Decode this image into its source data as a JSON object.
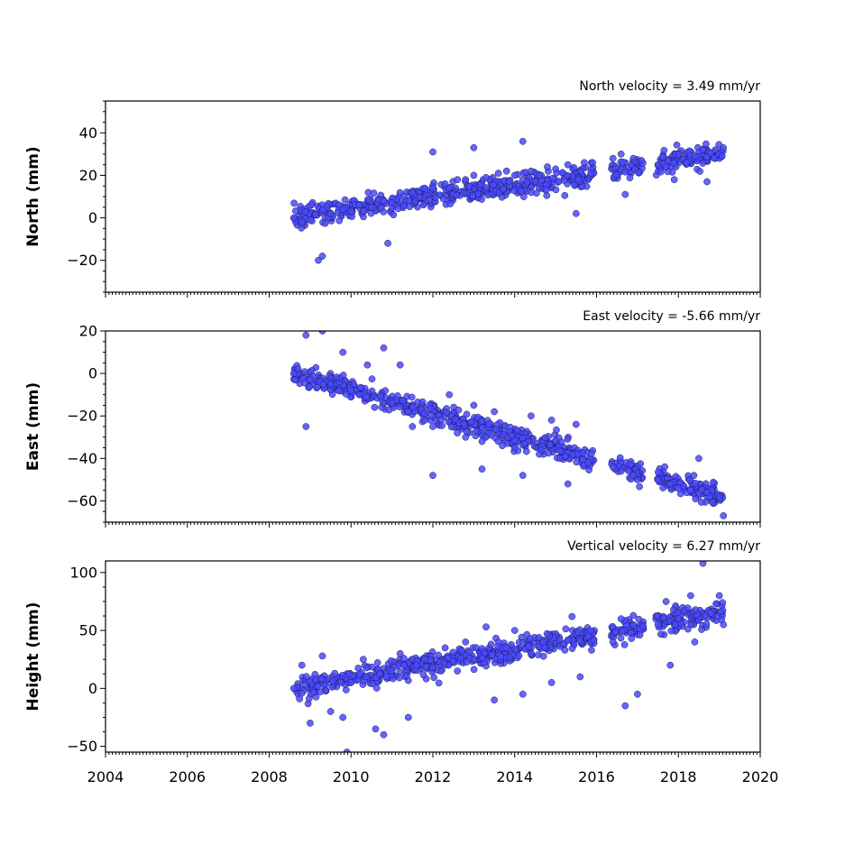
{
  "chart_data": [
    {
      "type": "scatter",
      "ylabel": "North (mm)",
      "annotation": "North velocity = 3.49 mm/yr",
      "velocity_mm_per_yr": 3.49,
      "xlim": [
        2004,
        2020
      ],
      "ylim": [
        -35,
        55
      ],
      "yticks": [
        -20,
        0,
        20,
        40
      ],
      "ytick_labels": [
        "−20",
        "0",
        "20",
        "40"
      ],
      "color": "#4a4aff",
      "trend": {
        "x_start": 2008.6,
        "x_end": 2019.1,
        "y_start": 0,
        "y_end": 30
      },
      "points": [
        [
          2008.6,
          0
        ],
        [
          2008.8,
          -2
        ],
        [
          2009.0,
          -1
        ],
        [
          2009.2,
          -20
        ],
        [
          2009.3,
          -18
        ],
        [
          2009.5,
          2
        ],
        [
          2009.8,
          4
        ],
        [
          2010.0,
          3
        ],
        [
          2010.2,
          6
        ],
        [
          2010.5,
          5
        ],
        [
          2010.8,
          8
        ],
        [
          2010.9,
          -12
        ],
        [
          2011.0,
          7
        ],
        [
          2011.3,
          10
        ],
        [
          2011.5,
          12
        ],
        [
          2011.8,
          14
        ],
        [
          2012.0,
          14
        ],
        [
          2012.0,
          31
        ],
        [
          2012.3,
          16
        ],
        [
          2012.6,
          18
        ],
        [
          2012.8,
          18
        ],
        [
          2013.0,
          20
        ],
        [
          2013.0,
          33
        ],
        [
          2013.3,
          19
        ],
        [
          2013.6,
          21
        ],
        [
          2013.8,
          22
        ],
        [
          2014.0,
          20
        ],
        [
          2014.2,
          36
        ],
        [
          2014.4,
          22
        ],
        [
          2014.6,
          20
        ],
        [
          2014.8,
          24
        ],
        [
          2015.0,
          23
        ],
        [
          2015.3,
          25
        ],
        [
          2015.5,
          2
        ],
        [
          2015.7,
          26
        ],
        [
          2015.9,
          26
        ],
        [
          2016.4,
          28
        ],
        [
          2016.6,
          30
        ],
        [
          2016.7,
          11
        ],
        [
          2016.9,
          28
        ],
        [
          2017.1,
          27
        ],
        [
          2017.5,
          25
        ],
        [
          2017.7,
          24
        ],
        [
          2017.9,
          18
        ],
        [
          2018.0,
          30
        ],
        [
          2018.2,
          26
        ],
        [
          2018.4,
          29
        ],
        [
          2018.6,
          32
        ],
        [
          2018.7,
          17
        ],
        [
          2018.9,
          32
        ],
        [
          2019.1,
          33
        ]
      ]
    },
    {
      "type": "scatter",
      "ylabel": "East (mm)",
      "annotation": "East velocity = -5.66 mm/yr",
      "velocity_mm_per_yr": -5.66,
      "xlim": [
        2004,
        2020
      ],
      "ylim": [
        -70,
        20
      ],
      "yticks": [
        -60,
        -40,
        -20,
        0,
        20
      ],
      "ytick_labels": [
        "−60",
        "−40",
        "−20",
        "0",
        "20"
      ],
      "color": "#4a4aff",
      "trend": {
        "x_start": 2008.6,
        "x_end": 2019.1,
        "y_start": 0,
        "y_end": -58
      },
      "points": [
        [
          2008.6,
          0
        ],
        [
          2008.9,
          18
        ],
        [
          2008.9,
          -25
        ],
        [
          2009.0,
          -3
        ],
        [
          2009.3,
          20
        ],
        [
          2009.5,
          -5
        ],
        [
          2009.8,
          10
        ],
        [
          2010.0,
          -8
        ],
        [
          2010.2,
          -10
        ],
        [
          2010.4,
          4
        ],
        [
          2010.8,
          12
        ],
        [
          2011.0,
          -14
        ],
        [
          2011.2,
          4
        ],
        [
          2011.4,
          -18
        ],
        [
          2011.5,
          -25
        ],
        [
          2011.8,
          -22
        ],
        [
          2012.0,
          -25
        ],
        [
          2012.0,
          -48
        ],
        [
          2012.4,
          -10
        ],
        [
          2012.6,
          -28
        ],
        [
          2012.8,
          -30
        ],
        [
          2013.0,
          -15
        ],
        [
          2013.2,
          -32
        ],
        [
          2013.2,
          -45
        ],
        [
          2013.5,
          -18
        ],
        [
          2013.7,
          -34
        ],
        [
          2014.0,
          -35
        ],
        [
          2014.2,
          -48
        ],
        [
          2014.4,
          -20
        ],
        [
          2014.6,
          -38
        ],
        [
          2014.9,
          -22
        ],
        [
          2015.1,
          -40
        ],
        [
          2015.3,
          -52
        ],
        [
          2015.5,
          -24
        ],
        [
          2015.8,
          -42
        ],
        [
          2016.4,
          -44
        ],
        [
          2016.6,
          -46
        ],
        [
          2016.9,
          -48
        ],
        [
          2017.0,
          -50
        ],
        [
          2017.5,
          -50
        ],
        [
          2017.8,
          -52
        ],
        [
          2018.0,
          -54
        ],
        [
          2018.3,
          -55
        ],
        [
          2018.5,
          -40
        ],
        [
          2018.7,
          -56
        ],
        [
          2019.0,
          -58
        ],
        [
          2019.1,
          -67
        ]
      ]
    },
    {
      "type": "scatter",
      "ylabel": "Height (mm)",
      "annotation": "Vertical velocity = 6.27 mm/yr",
      "velocity_mm_per_yr": 6.27,
      "xlim": [
        2004,
        2020
      ],
      "ylim": [
        -55,
        110
      ],
      "yticks": [
        -50,
        0,
        50,
        100
      ],
      "ytick_labels": [
        "−50",
        "0",
        "50",
        "100"
      ],
      "color": "#4a4aff",
      "trend": {
        "x_start": 2008.6,
        "x_end": 2019.1,
        "y_start": 0,
        "y_end": 65
      },
      "points": [
        [
          2008.6,
          0
        ],
        [
          2008.8,
          20
        ],
        [
          2009.0,
          -30
        ],
        [
          2009.3,
          28
        ],
        [
          2009.5,
          -20
        ],
        [
          2009.8,
          -25
        ],
        [
          2009.9,
          -55
        ],
        [
          2010.0,
          5
        ],
        [
          2010.3,
          25
        ],
        [
          2010.6,
          -35
        ],
        [
          2010.8,
          -40
        ],
        [
          2011.0,
          15
        ],
        [
          2011.2,
          30
        ],
        [
          2011.4,
          -25
        ],
        [
          2011.6,
          20
        ],
        [
          2011.8,
          25
        ],
        [
          2012.0,
          18
        ],
        [
          2012.3,
          35
        ],
        [
          2012.6,
          15
        ],
        [
          2012.8,
          40
        ],
        [
          2013.0,
          25
        ],
        [
          2013.3,
          53
        ],
        [
          2013.5,
          -10
        ],
        [
          2013.8,
          35
        ],
        [
          2014.0,
          50
        ],
        [
          2014.2,
          -5
        ],
        [
          2014.4,
          30
        ],
        [
          2014.7,
          40
        ],
        [
          2014.9,
          5
        ],
        [
          2015.1,
          42
        ],
        [
          2015.4,
          62
        ],
        [
          2015.6,
          10
        ],
        [
          2015.8,
          45
        ],
        [
          2016.4,
          40
        ],
        [
          2016.6,
          60
        ],
        [
          2016.7,
          -15
        ],
        [
          2016.9,
          55
        ],
        [
          2017.0,
          -5
        ],
        [
          2017.5,
          55
        ],
        [
          2017.7,
          75
        ],
        [
          2017.8,
          20
        ],
        [
          2018.0,
          60
        ],
        [
          2018.3,
          80
        ],
        [
          2018.4,
          40
        ],
        [
          2018.6,
          108
        ],
        [
          2018.8,
          65
        ],
        [
          2019.0,
          80
        ],
        [
          2019.1,
          55
        ]
      ]
    }
  ],
  "x_axis": {
    "ticks": [
      2004,
      2006,
      2008,
      2010,
      2012,
      2014,
      2016,
      2018,
      2020
    ]
  }
}
